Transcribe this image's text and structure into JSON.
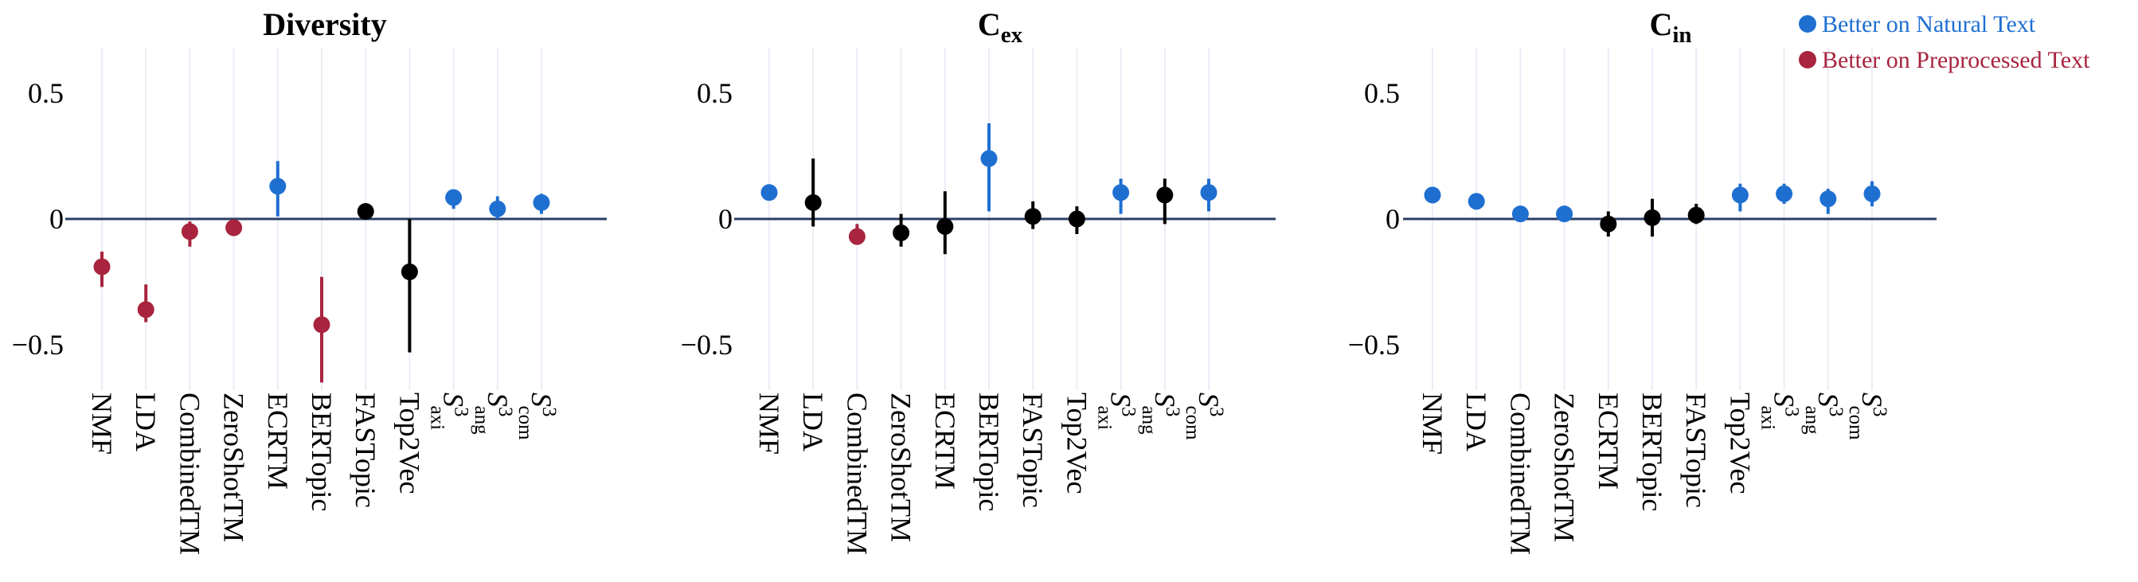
{
  "colors": {
    "natural": "#1f6fd1",
    "preprocessed": "#a8243f",
    "neutral": "#000000",
    "zero_line": "#2b3f63",
    "grid": "#e9edf5"
  },
  "legend": {
    "position": "top-right",
    "items": [
      {
        "label": "Better on Natural Text",
        "color_key": "natural"
      },
      {
        "label": "Better on Preprocessed Text",
        "color_key": "preprocessed"
      }
    ]
  },
  "chart_data": [
    {
      "type": "scatter",
      "title": {
        "main": "Diversity",
        "sub": ""
      },
      "ylim": [
        -0.68,
        0.68
      ],
      "yticks": [
        0.5,
        0,
        -0.5
      ],
      "ytick_labels": [
        "0.5",
        "0",
        "−0.5"
      ],
      "grid": "vertical",
      "categories": [
        {
          "main": "NMF",
          "sup": "",
          "sub": ""
        },
        {
          "main": "LDA",
          "sup": "",
          "sub": ""
        },
        {
          "main": "CombinedTM",
          "sup": "",
          "sub": ""
        },
        {
          "main": "ZeroShotTM",
          "sup": "",
          "sub": ""
        },
        {
          "main": "ECRTM",
          "sup": "",
          "sub": ""
        },
        {
          "main": "BERTopic",
          "sup": "",
          "sub": ""
        },
        {
          "main": "FASTopic",
          "sup": "",
          "sub": ""
        },
        {
          "main": "Top2Vec",
          "sup": "",
          "sub": ""
        },
        {
          "main": "S",
          "sup": "3",
          "sub": "axi"
        },
        {
          "main": "S",
          "sup": "3",
          "sub": "ang"
        },
        {
          "main": "S",
          "sup": "3",
          "sub": "com"
        }
      ],
      "points": [
        {
          "value": -0.19,
          "low": -0.27,
          "high": -0.13,
          "group": "preprocessed"
        },
        {
          "value": -0.36,
          "low": -0.41,
          "high": -0.26,
          "group": "preprocessed"
        },
        {
          "value": -0.05,
          "low": -0.11,
          "high": -0.01,
          "group": "preprocessed"
        },
        {
          "value": -0.035,
          "low": -0.06,
          "high": -0.015,
          "group": "preprocessed"
        },
        {
          "value": 0.13,
          "low": 0.01,
          "high": 0.23,
          "group": "natural"
        },
        {
          "value": -0.42,
          "low": -0.65,
          "high": -0.23,
          "group": "preprocessed"
        },
        {
          "value": 0.03,
          "low": 0.0,
          "high": 0.06,
          "group": "neutral"
        },
        {
          "value": -0.21,
          "low": -0.53,
          "high": 0.0,
          "group": "neutral"
        },
        {
          "value": 0.085,
          "low": 0.04,
          "high": 0.11,
          "group": "natural"
        },
        {
          "value": 0.04,
          "low": 0.0,
          "high": 0.09,
          "group": "natural"
        },
        {
          "value": 0.065,
          "low": 0.02,
          "high": 0.1,
          "group": "natural"
        }
      ]
    },
    {
      "type": "scatter",
      "title": {
        "main": "C",
        "sub": "ex"
      },
      "ylim": [
        -0.68,
        0.68
      ],
      "yticks": [
        0.5,
        0,
        -0.5
      ],
      "ytick_labels": [
        "0.5",
        "0",
        "−0.5"
      ],
      "grid": "vertical",
      "categories": [
        {
          "main": "NMF",
          "sup": "",
          "sub": ""
        },
        {
          "main": "LDA",
          "sup": "",
          "sub": ""
        },
        {
          "main": "CombinedTM",
          "sup": "",
          "sub": ""
        },
        {
          "main": "ZeroShotTM",
          "sup": "",
          "sub": ""
        },
        {
          "main": "ECRTM",
          "sup": "",
          "sub": ""
        },
        {
          "main": "BERTopic",
          "sup": "",
          "sub": ""
        },
        {
          "main": "FASTopic",
          "sup": "",
          "sub": ""
        },
        {
          "main": "Top2Vec",
          "sup": "",
          "sub": ""
        },
        {
          "main": "S",
          "sup": "3",
          "sub": "axi"
        },
        {
          "main": "S",
          "sup": "3",
          "sub": "ang"
        },
        {
          "main": "S",
          "sup": "3",
          "sub": "com"
        }
      ],
      "points": [
        {
          "value": 0.105,
          "low": 0.085,
          "high": 0.125,
          "group": "natural"
        },
        {
          "value": 0.065,
          "low": -0.03,
          "high": 0.24,
          "group": "neutral"
        },
        {
          "value": -0.07,
          "low": -0.09,
          "high": -0.02,
          "group": "preprocessed"
        },
        {
          "value": -0.055,
          "low": -0.11,
          "high": 0.02,
          "group": "neutral"
        },
        {
          "value": -0.03,
          "low": -0.14,
          "high": 0.11,
          "group": "neutral"
        },
        {
          "value": 0.24,
          "low": 0.03,
          "high": 0.38,
          "group": "natural"
        },
        {
          "value": 0.01,
          "low": -0.04,
          "high": 0.07,
          "group": "neutral"
        },
        {
          "value": 0.0,
          "low": -0.06,
          "high": 0.05,
          "group": "neutral"
        },
        {
          "value": 0.105,
          "low": 0.02,
          "high": 0.16,
          "group": "natural"
        },
        {
          "value": 0.095,
          "low": -0.02,
          "high": 0.16,
          "group": "neutral"
        },
        {
          "value": 0.105,
          "low": 0.03,
          "high": 0.16,
          "group": "natural"
        }
      ]
    },
    {
      "type": "scatter",
      "title": {
        "main": "C",
        "sub": "in"
      },
      "ylim": [
        -0.68,
        0.68
      ],
      "yticks": [
        0.5,
        0,
        -0.5
      ],
      "ytick_labels": [
        "0.5",
        "0",
        "−0.5"
      ],
      "grid": "vertical",
      "categories": [
        {
          "main": "NMF",
          "sup": "",
          "sub": ""
        },
        {
          "main": "LDA",
          "sup": "",
          "sub": ""
        },
        {
          "main": "CombinedTM",
          "sup": "",
          "sub": ""
        },
        {
          "main": "ZeroShotTM",
          "sup": "",
          "sub": ""
        },
        {
          "main": "ECRTM",
          "sup": "",
          "sub": ""
        },
        {
          "main": "BERTopic",
          "sup": "",
          "sub": ""
        },
        {
          "main": "FASTopic",
          "sup": "",
          "sub": ""
        },
        {
          "main": "Top2Vec",
          "sup": "",
          "sub": ""
        },
        {
          "main": "S",
          "sup": "3",
          "sub": "axi"
        },
        {
          "main": "S",
          "sup": "3",
          "sub": "ang"
        },
        {
          "main": "S",
          "sup": "3",
          "sub": "com"
        }
      ],
      "points": [
        {
          "value": 0.095,
          "low": 0.08,
          "high": 0.11,
          "group": "natural"
        },
        {
          "value": 0.07,
          "low": 0.055,
          "high": 0.085,
          "group": "natural"
        },
        {
          "value": 0.02,
          "low": 0.005,
          "high": 0.035,
          "group": "natural"
        },
        {
          "value": 0.02,
          "low": 0.005,
          "high": 0.035,
          "group": "natural"
        },
        {
          "value": -0.02,
          "low": -0.07,
          "high": 0.03,
          "group": "neutral"
        },
        {
          "value": 0.005,
          "low": -0.07,
          "high": 0.08,
          "group": "neutral"
        },
        {
          "value": 0.015,
          "low": -0.02,
          "high": 0.06,
          "group": "neutral"
        },
        {
          "value": 0.095,
          "low": 0.03,
          "high": 0.14,
          "group": "natural"
        },
        {
          "value": 0.1,
          "low": 0.06,
          "high": 0.14,
          "group": "natural"
        },
        {
          "value": 0.08,
          "low": 0.02,
          "high": 0.12,
          "group": "natural"
        },
        {
          "value": 0.1,
          "low": 0.05,
          "high": 0.15,
          "group": "natural"
        }
      ]
    }
  ]
}
